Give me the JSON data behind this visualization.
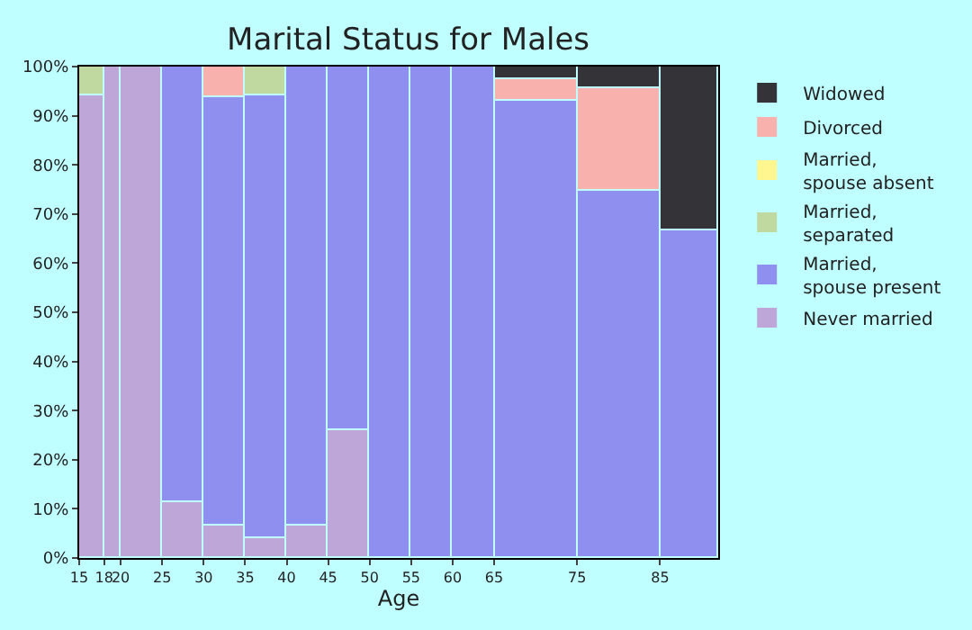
{
  "chart_data": {
    "type": "bar",
    "title": "Marital Status for Males",
    "xlabel": "Age",
    "stacked": true,
    "legend": "right",
    "x": [
      16.5,
      19,
      22.5,
      27.5,
      32.5,
      37.5,
      42.5,
      47.5,
      52.5,
      57.5,
      62.5,
      70,
      80,
      88.5
    ],
    "xlim": [
      15,
      92
    ],
    "xticks": [
      15,
      18,
      20,
      25,
      30,
      35,
      40,
      45,
      50,
      55,
      60,
      65,
      75,
      85
    ],
    "ylim": [
      0,
      100
    ],
    "yticks": [
      {
        "value": 0,
        "label": "0%"
      },
      {
        "value": 10,
        "label": "10%"
      },
      {
        "value": 20,
        "label": "20%"
      },
      {
        "value": 30,
        "label": "30%"
      },
      {
        "value": 40,
        "label": "40%"
      },
      {
        "value": 50,
        "label": "50%"
      },
      {
        "value": 60,
        "label": "60%"
      },
      {
        "value": 70,
        "label": "70%"
      },
      {
        "value": 80,
        "label": "80%"
      },
      {
        "value": 90,
        "label": "90%"
      },
      {
        "value": 100,
        "label": "100%"
      }
    ],
    "series": [
      {
        "name": "Never married",
        "color": "#bfa6d8",
        "values": [
          94.2,
          100,
          100,
          11.5,
          6.7,
          3.9,
          6.7,
          25.9,
          0,
          0,
          0,
          0,
          0,
          0
        ]
      },
      {
        "name": "Married,\nspouse present",
        "color": "#8f8ff0",
        "values": [
          0,
          0,
          0,
          88.5,
          87.1,
          90.3,
          93.3,
          74.1,
          100,
          100,
          100,
          93.2,
          74.7,
          66.7
        ]
      },
      {
        "name": "Married,\nseparated",
        "color": "#c0d9a0",
        "values": [
          5.8,
          0,
          0,
          0,
          0,
          5.8,
          0,
          0,
          0,
          0,
          0,
          0,
          0,
          0
        ]
      },
      {
        "name": "Married,\nspouse absent",
        "color": "#fff68f",
        "values": [
          0,
          0,
          0,
          0,
          0,
          0,
          0,
          0,
          0,
          0,
          0,
          0,
          0,
          0
        ]
      },
      {
        "name": "Divorced",
        "color": "#f9b1ae",
        "values": [
          0,
          0,
          0,
          0,
          6.2,
          0,
          0,
          0,
          0,
          0,
          0,
          4.2,
          20.9,
          0
        ]
      },
      {
        "name": "Widowed",
        "color": "#333338",
        "values": [
          0,
          0,
          0,
          0,
          0,
          0,
          0,
          0,
          0,
          0,
          0,
          2.6,
          4.4,
          33.3
        ]
      }
    ]
  }
}
